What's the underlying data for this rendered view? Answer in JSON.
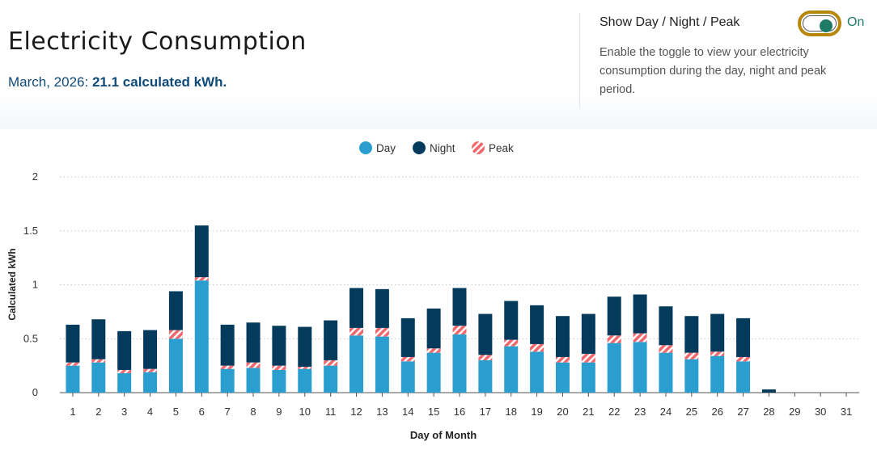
{
  "header": {
    "title": "Electricity Consumption",
    "period": "March, 2026:",
    "total": "21.1 calculated kWh."
  },
  "toggle": {
    "label": "Show Day / Night / Peak",
    "state": "On",
    "description": "Enable the toggle to view your electricity consumption during the day, night and peak period."
  },
  "colors": {
    "day": "#2a9fcf",
    "night": "#043b5c",
    "peak": "#f0686e",
    "grid": "#c6c6c6",
    "toggle_border": "#b8860b",
    "toggle_on": "#1f7a66"
  },
  "chart_data": {
    "type": "bar",
    "stacked": true,
    "xlabel": "Day of Month",
    "ylabel": "Calculated kWh",
    "ylim": [
      0,
      2
    ],
    "yticks": [
      "0",
      "0.5",
      "1",
      "1.5",
      "2"
    ],
    "ytick_values": [
      0,
      0.5,
      1,
      1.5,
      2
    ],
    "grid": true,
    "legend": "top-center",
    "categories": [
      "1",
      "2",
      "3",
      "4",
      "5",
      "6",
      "7",
      "8",
      "9",
      "10",
      "11",
      "12",
      "13",
      "14",
      "15",
      "16",
      "17",
      "18",
      "19",
      "20",
      "21",
      "22",
      "23",
      "24",
      "25",
      "26",
      "27",
      "28",
      "29",
      "30",
      "31"
    ],
    "series": [
      {
        "name": "Day",
        "key": "day",
        "values": [
          0.25,
          0.28,
          0.18,
          0.19,
          0.5,
          1.04,
          0.22,
          0.23,
          0.21,
          0.22,
          0.25,
          0.53,
          0.52,
          0.29,
          0.37,
          0.54,
          0.3,
          0.43,
          0.38,
          0.28,
          0.28,
          0.46,
          0.47,
          0.37,
          0.31,
          0.34,
          0.29,
          0,
          0,
          0,
          0
        ]
      },
      {
        "name": "Peak",
        "key": "peak",
        "values": [
          0.03,
          0.03,
          0.03,
          0.03,
          0.08,
          0.03,
          0.03,
          0.05,
          0.04,
          0.02,
          0.05,
          0.07,
          0.08,
          0.04,
          0.04,
          0.08,
          0.05,
          0.06,
          0.07,
          0.05,
          0.08,
          0.07,
          0.08,
          0.07,
          0.06,
          0.04,
          0.04,
          0,
          0,
          0,
          0
        ]
      },
      {
        "name": "Night",
        "key": "night",
        "values": [
          0.35,
          0.37,
          0.36,
          0.36,
          0.36,
          0.48,
          0.38,
          0.37,
          0.37,
          0.37,
          0.37,
          0.37,
          0.36,
          0.36,
          0.37,
          0.35,
          0.38,
          0.36,
          0.36,
          0.38,
          0.37,
          0.36,
          0.36,
          0.36,
          0.34,
          0.35,
          0.36,
          0.03,
          0,
          0,
          0
        ]
      }
    ],
    "legend_order": [
      "Day",
      "Night",
      "Peak"
    ]
  }
}
